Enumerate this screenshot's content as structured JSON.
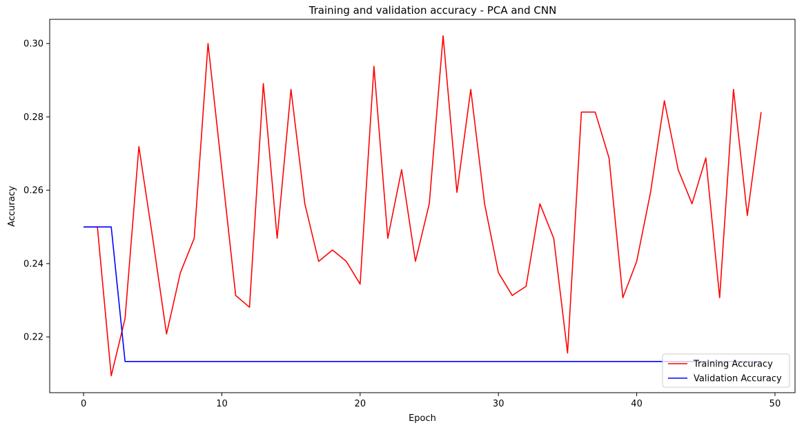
{
  "chart_data": {
    "type": "line",
    "title": "Training and validation accuracy - PCA and CNN",
    "xlabel": "Epoch",
    "ylabel": "Accuracy",
    "xlim": [
      -2.45,
      51.45
    ],
    "ylim": [
      0.2048,
      0.3066
    ],
    "xticks": [
      0,
      10,
      20,
      30,
      40,
      50
    ],
    "yticks": [
      0.22,
      0.24,
      0.26,
      0.28,
      0.3
    ],
    "ytick_labels": [
      "0.22",
      "0.24",
      "0.26",
      "0.28",
      "0.30"
    ],
    "grid": false,
    "legend_position": "lower-right",
    "x": [
      0,
      1,
      2,
      3,
      4,
      5,
      6,
      7,
      8,
      9,
      10,
      11,
      12,
      13,
      14,
      15,
      16,
      17,
      18,
      19,
      20,
      21,
      22,
      23,
      24,
      25,
      26,
      27,
      28,
      29,
      30,
      31,
      32,
      33,
      34,
      35,
      36,
      37,
      38,
      39,
      40,
      41,
      42,
      43,
      44,
      45,
      46,
      47,
      48,
      49
    ],
    "series": [
      {
        "name": "Training Accuracy",
        "color": "#ff0000",
        "values": [
          0.25,
          0.25,
          0.2094,
          0.225,
          0.2719,
          0.2469,
          0.2208,
          0.2375,
          0.2469,
          0.3,
          0.2656,
          0.2313,
          0.2281,
          0.2891,
          0.2469,
          0.2875,
          0.2563,
          0.2406,
          0.2437,
          0.2406,
          0.2344,
          0.2938,
          0.2469,
          0.2656,
          0.2406,
          0.2563,
          0.3021,
          0.2594,
          0.2875,
          0.2563,
          0.2375,
          0.2313,
          0.2338,
          0.2563,
          0.2469,
          0.2156,
          0.2813,
          0.2813,
          0.2688,
          0.2307,
          0.2406,
          0.2594,
          0.2844,
          0.2656,
          0.2563,
          0.2688,
          0.2307,
          0.2875,
          0.2531,
          0.2813
        ]
      },
      {
        "name": "Validation Accuracy",
        "color": "#0000ff",
        "values": [
          0.25,
          0.25,
          0.25,
          0.2133,
          0.2133,
          0.2133,
          0.2133,
          0.2133,
          0.2133,
          0.2133,
          0.2133,
          0.2133,
          0.2133,
          0.2133,
          0.2133,
          0.2133,
          0.2133,
          0.2133,
          0.2133,
          0.2133,
          0.2133,
          0.2133,
          0.2133,
          0.2133,
          0.2133,
          0.2133,
          0.2133,
          0.2133,
          0.2133,
          0.2133,
          0.2133,
          0.2133,
          0.2133,
          0.2133,
          0.2133,
          0.2133,
          0.2133,
          0.2133,
          0.2133,
          0.2133,
          0.2133,
          0.2133,
          0.2133,
          0.2133,
          0.2133,
          0.2133,
          0.2133,
          0.2133,
          0.2133,
          0.2133
        ]
      }
    ]
  }
}
